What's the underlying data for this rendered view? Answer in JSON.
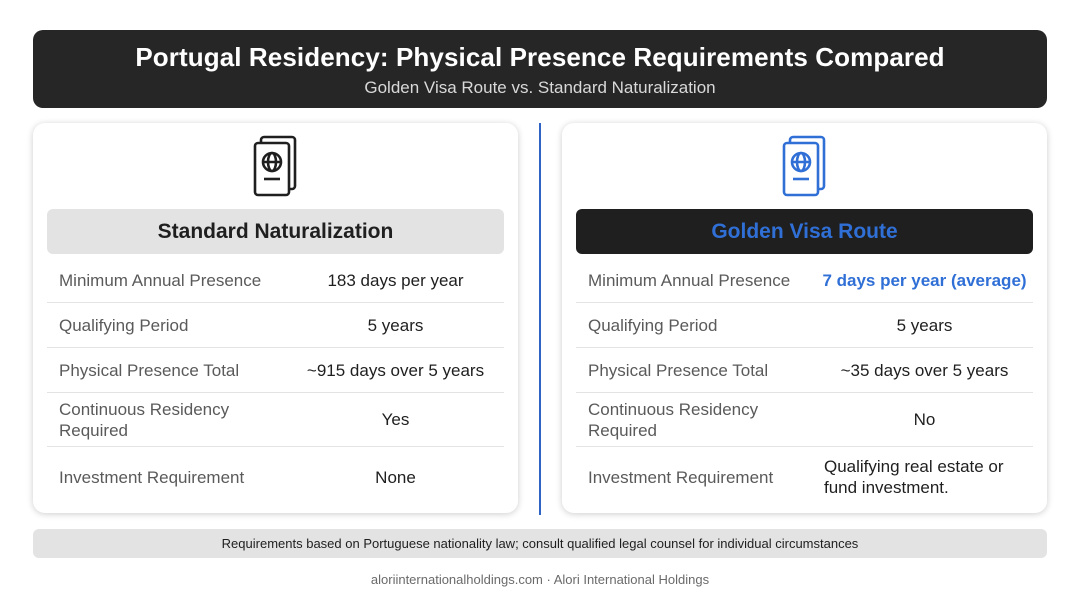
{
  "header": {
    "title": "Portugal Residency: Physical Presence Requirements Compared",
    "subtitle": "Golden Visa Route vs. Standard Naturalization"
  },
  "cards": [
    {
      "icon": "passport-icon",
      "icon_color": "#1f1f1f",
      "heading": "Standard Naturalization",
      "rows": [
        {
          "label": "Minimum Annual Presence",
          "value": "183 days per year"
        },
        {
          "label": "Qualifying Period",
          "value": "5 years"
        },
        {
          "label": "Physical Presence Total",
          "value": "~915 days over 5 years"
        },
        {
          "label": "Continuous Residency Required",
          "value": "Yes"
        },
        {
          "label": "Investment Requirement",
          "value": "None"
        }
      ]
    },
    {
      "icon": "passport-icon",
      "icon_color": "#2f6fd6",
      "heading": "Golden Visa Route",
      "rows": [
        {
          "label": "Minimum Annual Presence",
          "value": "7 days per year (average)"
        },
        {
          "label": "Qualifying Period",
          "value": "5 years"
        },
        {
          "label": "Physical Presence Total",
          "value": "~35 days over 5 years"
        },
        {
          "label": "Continuous Residency Required",
          "value": "No"
        },
        {
          "label": "Investment Requirement",
          "value": "Qualifying real estate or fund investment."
        }
      ]
    }
  ],
  "footnote": "Requirements based on Portuguese nationality law; consult qualified legal counsel for individual circumstances",
  "credit": "aloriinternationalholdings.com · Alori International Holdings",
  "colors": {
    "accent_blue": "#2f6fd6",
    "header_bg": "#262626",
    "divider": "#2f64c4"
  }
}
